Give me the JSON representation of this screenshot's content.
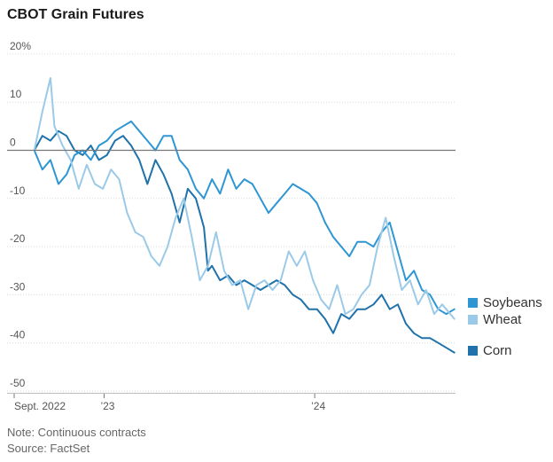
{
  "chart_data": {
    "type": "line",
    "title": "CBOT Grain Futures",
    "xlabel": "",
    "ylabel": "",
    "y_unit": "%",
    "ylim": [
      -50,
      20
    ],
    "yticks": [
      20,
      10,
      0,
      -10,
      -20,
      -30,
      -40,
      -50
    ],
    "ytick_labels": [
      "20%",
      "10",
      "0",
      "-10",
      "-20",
      "-30",
      "-40",
      "-50"
    ],
    "xlim": [
      "2022-09",
      "2024-09"
    ],
    "xticks": [
      {
        "date": "2022-09",
        "label": "Sept. 2022"
      },
      {
        "date": "2023-01",
        "label": "’23"
      },
      {
        "date": "2024-01",
        "label": "’24"
      }
    ],
    "grid": "horizontal",
    "legend_position": "right, beside series ends",
    "series": [
      {
        "name": "Soybeans",
        "color": "#2e96d3",
        "x": [
          "2022-09-02",
          "2022-09-16",
          "2022-09-30",
          "2022-10-14",
          "2022-10-28",
          "2022-11-11",
          "2022-11-25",
          "2022-12-09",
          "2022-12-23",
          "2023-01-06",
          "2023-01-20",
          "2023-02-03",
          "2023-02-17",
          "2023-03-03",
          "2023-03-17",
          "2023-03-31",
          "2023-04-14",
          "2023-04-28",
          "2023-05-12",
          "2023-05-26",
          "2023-06-09",
          "2023-06-23",
          "2023-07-07",
          "2023-07-21",
          "2023-08-04",
          "2023-08-18",
          "2023-09-01",
          "2023-09-15",
          "2023-09-29",
          "2023-10-13",
          "2023-10-27",
          "2023-11-10",
          "2023-11-24",
          "2023-12-08",
          "2023-12-22",
          "2024-01-05",
          "2024-01-19",
          "2024-02-02",
          "2024-02-16",
          "2024-03-01",
          "2024-03-15",
          "2024-03-29",
          "2024-04-12",
          "2024-04-26",
          "2024-05-10",
          "2024-05-24",
          "2024-06-07",
          "2024-06-21",
          "2024-07-05",
          "2024-07-19",
          "2024-08-02",
          "2024-08-16",
          "2024-08-30"
        ],
        "values": [
          0,
          -4,
          -2,
          -7,
          -5,
          -1,
          0,
          -2,
          1,
          2,
          4,
          5,
          6,
          4,
          2,
          0,
          3,
          3,
          -2,
          -4,
          -8,
          -10,
          -6,
          -9,
          -4,
          -8,
          -6,
          -7,
          -10,
          -13,
          -11,
          -9,
          -7,
          -8,
          -9,
          -11,
          -15,
          -18,
          -20,
          -22,
          -19,
          -19,
          -20,
          -17,
          -15,
          -21,
          -27,
          -25,
          -29,
          -30,
          -33,
          -34,
          -33
        ],
        "end_label": "Soybeans"
      },
      {
        "name": "Wheat",
        "color": "#9bcae8",
        "x": [
          "2022-09-02",
          "2022-09-16",
          "2022-09-30",
          "2022-10-07",
          "2022-10-21",
          "2022-11-04",
          "2022-11-18",
          "2022-12-02",
          "2022-12-16",
          "2022-12-30",
          "2023-01-13",
          "2023-01-27",
          "2023-02-10",
          "2023-02-24",
          "2023-03-10",
          "2023-03-24",
          "2023-04-07",
          "2023-04-21",
          "2023-05-05",
          "2023-05-19",
          "2023-06-02",
          "2023-06-16",
          "2023-06-30",
          "2023-07-14",
          "2023-07-28",
          "2023-08-11",
          "2023-08-25",
          "2023-09-08",
          "2023-09-22",
          "2023-10-06",
          "2023-10-20",
          "2023-11-03",
          "2023-11-17",
          "2023-12-01",
          "2023-12-15",
          "2023-12-29",
          "2024-01-12",
          "2024-01-26",
          "2024-02-09",
          "2024-02-23",
          "2024-03-08",
          "2024-03-22",
          "2024-04-05",
          "2024-04-19",
          "2024-05-03",
          "2024-05-17",
          "2024-05-31",
          "2024-06-14",
          "2024-06-28",
          "2024-07-12",
          "2024-07-26",
          "2024-08-09",
          "2024-08-30"
        ],
        "values": [
          0,
          8,
          15,
          5,
          1,
          -2,
          -8,
          -3,
          -7,
          -8,
          -4,
          -6,
          -13,
          -17,
          -18,
          -22,
          -24,
          -20,
          -14,
          -10,
          -18,
          -27,
          -24,
          -17,
          -25,
          -28,
          -27,
          -33,
          -28,
          -27,
          -29,
          -27,
          -21,
          -24,
          -21,
          -27,
          -31,
          -33,
          -28,
          -34,
          -33,
          -30,
          -28,
          -20,
          -14,
          -22,
          -29,
          -27,
          -32,
          -29,
          -34,
          -32,
          -35
        ],
        "end_label": "Wheat"
      },
      {
        "name": "Corn",
        "color": "#1f72aa",
        "x": [
          "2022-09-02",
          "2022-09-16",
          "2022-09-30",
          "2022-10-14",
          "2022-10-28",
          "2022-11-11",
          "2022-11-25",
          "2022-12-09",
          "2022-12-23",
          "2023-01-06",
          "2023-01-20",
          "2023-02-03",
          "2023-02-17",
          "2023-03-03",
          "2023-03-17",
          "2023-03-31",
          "2023-04-14",
          "2023-04-28",
          "2023-05-12",
          "2023-05-26",
          "2023-06-09",
          "2023-06-23",
          "2023-06-30",
          "2023-07-07",
          "2023-07-21",
          "2023-08-04",
          "2023-08-18",
          "2023-09-01",
          "2023-09-15",
          "2023-09-29",
          "2023-10-13",
          "2023-10-27",
          "2023-11-10",
          "2023-11-24",
          "2023-12-08",
          "2023-12-22",
          "2024-01-05",
          "2024-01-19",
          "2024-02-02",
          "2024-02-16",
          "2024-03-01",
          "2024-03-15",
          "2024-03-29",
          "2024-04-12",
          "2024-04-26",
          "2024-05-10",
          "2024-05-24",
          "2024-06-07",
          "2024-06-21",
          "2024-07-05",
          "2024-07-19",
          "2024-08-02",
          "2024-08-30"
        ],
        "values": [
          0,
          3,
          2,
          4,
          3,
          0,
          -1,
          1,
          -2,
          -1,
          2,
          3,
          1,
          -2,
          -7,
          -2,
          -5,
          -9,
          -15,
          -8,
          -10,
          -16,
          -25,
          -24,
          -27,
          -26,
          -28,
          -27,
          -28,
          -29,
          -28,
          -27,
          -28,
          -30,
          -31,
          -33,
          -33,
          -35,
          -38,
          -34,
          -35,
          -33,
          -33,
          -32,
          -30,
          -33,
          -32,
          -36,
          -38,
          -39,
          -39,
          -40,
          -42
        ],
        "end_label": "Corn"
      }
    ]
  },
  "notes": {
    "note": "Note: Continuous contracts",
    "source": "Source: FactSet"
  }
}
